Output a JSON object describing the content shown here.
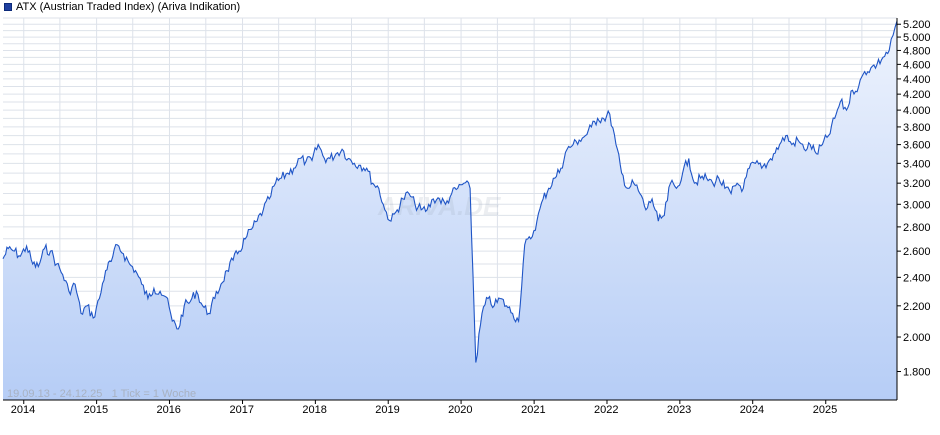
{
  "legend": {
    "label": "ATX (Austrian Traded Index) (Ariva Indikation)",
    "color": "#1f3f9f"
  },
  "footer": {
    "date_range": "19.09.13 - 24.12.25",
    "tick_info": "1 Tick = 1 Woche"
  },
  "watermark": "ARIVA.DE",
  "colors": {
    "line": "#1f55c6",
    "fill_top": "#eef3fd",
    "fill_bottom": "#b6cdf6",
    "grid": "#dde2ea"
  },
  "chart_data": {
    "type": "area",
    "title": "",
    "xlabel": "",
    "ylabel": "",
    "y_scale": "log",
    "ylim": [
      1650,
      5300
    ],
    "grid": true,
    "y_axis_side": "right",
    "x_ticks": [
      "2014",
      "2015",
      "2016",
      "2017",
      "2018",
      "2019",
      "2020",
      "2021",
      "2022",
      "2023",
      "2024",
      "2025"
    ],
    "y_ticks": [
      1800,
      2000,
      2200,
      2400,
      2600,
      2800,
      3000,
      3200,
      3400,
      3600,
      3800,
      4000,
      4200,
      4400,
      4600,
      4800,
      5000,
      5200
    ],
    "y_tick_labels": [
      "1.800",
      "2.000",
      "2.200",
      "2.400",
      "2.600",
      "2.800",
      "3.000",
      "3.200",
      "3.400",
      "3.600",
      "3.800",
      "4.000",
      "4.200",
      "4.400",
      "4.600",
      "4.800",
      "5.000",
      "5.200"
    ],
    "series": [
      {
        "x": [
          "2013-09-19",
          "2013-10-15",
          "2013-11-15",
          "2013-12-15",
          "2014-01-15",
          "2014-02-15",
          "2014-03-15",
          "2014-04-15",
          "2014-05-15",
          "2014-06-15",
          "2014-07-15",
          "2014-08-15",
          "2014-09-15",
          "2014-10-15",
          "2014-11-15",
          "2014-12-15",
          "2015-01-15",
          "2015-02-15",
          "2015-03-15",
          "2015-04-15",
          "2015-05-15",
          "2015-06-15",
          "2015-07-15",
          "2015-08-15",
          "2015-09-15",
          "2015-10-15",
          "2015-11-15",
          "2015-12-15",
          "2016-01-15",
          "2016-02-15",
          "2016-03-15",
          "2016-04-15",
          "2016-05-15",
          "2016-06-15",
          "2016-07-15",
          "2016-08-15",
          "2016-09-15",
          "2016-10-15",
          "2016-11-15",
          "2016-12-15",
          "2017-01-15",
          "2017-02-15",
          "2017-03-15",
          "2017-04-15",
          "2017-05-15",
          "2017-06-15",
          "2017-07-15",
          "2017-08-15",
          "2017-09-15",
          "2017-10-15",
          "2017-11-15",
          "2017-12-15",
          "2018-01-15",
          "2018-02-15",
          "2018-03-15",
          "2018-04-15",
          "2018-05-15",
          "2018-06-15",
          "2018-07-15",
          "2018-08-15",
          "2018-09-15",
          "2018-10-15",
          "2018-11-15",
          "2018-12-15",
          "2019-01-15",
          "2019-02-15",
          "2019-03-15",
          "2019-04-15",
          "2019-05-15",
          "2019-06-15",
          "2019-07-15",
          "2019-08-15",
          "2019-09-15",
          "2019-10-15",
          "2019-11-15",
          "2019-12-15",
          "2020-01-15",
          "2020-02-15",
          "2020-03-15",
          "2020-04-15",
          "2020-05-15",
          "2020-06-15",
          "2020-07-15",
          "2020-08-15",
          "2020-09-15",
          "2020-10-15",
          "2020-11-15",
          "2020-12-15",
          "2021-01-15",
          "2021-02-15",
          "2021-03-15",
          "2021-04-15",
          "2021-05-15",
          "2021-06-15",
          "2021-07-15",
          "2021-08-15",
          "2021-09-15",
          "2021-10-15",
          "2021-11-15",
          "2021-12-15",
          "2022-01-15",
          "2022-02-15",
          "2022-03-15",
          "2022-04-15",
          "2022-05-15",
          "2022-06-15",
          "2022-07-15",
          "2022-08-15",
          "2022-09-15",
          "2022-10-15",
          "2022-11-15",
          "2022-12-15",
          "2023-01-15",
          "2023-02-15",
          "2023-03-15",
          "2023-04-15",
          "2023-05-15",
          "2023-06-15",
          "2023-07-15",
          "2023-08-15",
          "2023-09-15",
          "2023-10-15",
          "2023-11-15",
          "2023-12-15",
          "2024-01-15",
          "2024-02-15",
          "2024-03-15",
          "2024-04-15",
          "2024-05-15",
          "2024-06-15",
          "2024-07-15",
          "2024-08-15",
          "2024-09-15",
          "2024-10-15",
          "2024-11-15",
          "2024-12-15",
          "2025-01-15",
          "2025-02-15",
          "2025-03-15",
          "2025-04-15",
          "2025-05-15",
          "2025-06-15",
          "2025-07-15",
          "2025-08-15",
          "2025-09-15",
          "2025-10-15",
          "2025-11-15",
          "2025-12-24"
        ],
        "values": [
          2540,
          2620,
          2600,
          2560,
          2640,
          2500,
          2480,
          2620,
          2600,
          2500,
          2420,
          2300,
          2350,
          2150,
          2200,
          2120,
          2250,
          2450,
          2520,
          2650,
          2580,
          2500,
          2450,
          2350,
          2250,
          2320,
          2300,
          2260,
          2100,
          2050,
          2200,
          2230,
          2300,
          2200,
          2150,
          2250,
          2350,
          2450,
          2530,
          2600,
          2700,
          2780,
          2850,
          2950,
          3050,
          3200,
          3250,
          3300,
          3350,
          3450,
          3420,
          3430,
          3600,
          3450,
          3450,
          3500,
          3550,
          3450,
          3400,
          3380,
          3350,
          3200,
          3150,
          2950,
          2850,
          2950,
          3050,
          3100,
          3000,
          2950,
          2950,
          3050,
          3050,
          3000,
          3100,
          3150,
          3200,
          3150,
          1850,
          2150,
          2250,
          2200,
          2250,
          2200,
          2150,
          2100,
          2650,
          2700,
          2850,
          3050,
          3150,
          3250,
          3350,
          3550,
          3600,
          3650,
          3700,
          3800,
          3900,
          3900,
          3950,
          3600,
          3300,
          3150,
          3200,
          3100,
          2950,
          3050,
          2850,
          2900,
          3200,
          3150,
          3300,
          3450,
          3200,
          3250,
          3250,
          3200,
          3250,
          3150,
          3100,
          3200,
          3150,
          3350,
          3400,
          3350,
          3400,
          3500,
          3600,
          3700,
          3600,
          3650,
          3550,
          3600,
          3500,
          3600,
          3700,
          3900,
          4100,
          4000,
          4250,
          4300,
          4500,
          4550,
          4600,
          4700,
          4800,
          5250
        ]
      }
    ]
  }
}
